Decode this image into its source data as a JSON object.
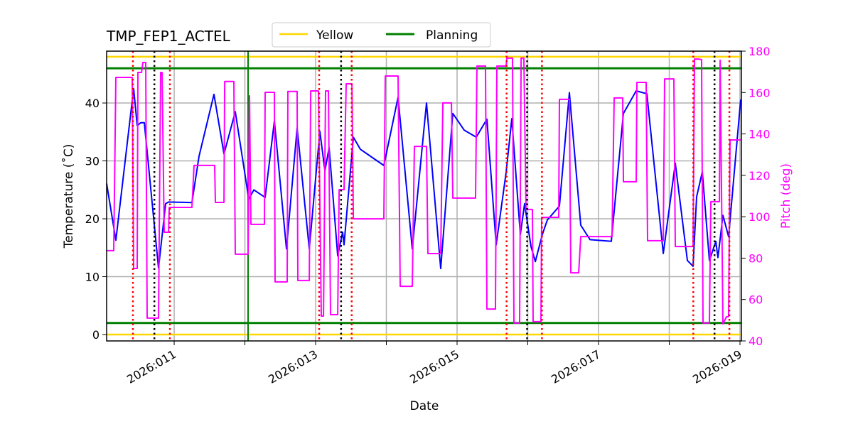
{
  "chart_data": {
    "type": "line",
    "title": "TMP_FEP1_ACTEL",
    "xlabel": "Date",
    "ylabel": "Temperature ($^\\circ$C)",
    "ylabel_display": "Temperature (˚C)",
    "y2label": "Pitch (deg)",
    "x_unit": "day of year 2026",
    "xlim": [
      10.045,
      19.02
    ],
    "ylim": [
      -1.1,
      48.96
    ],
    "y2lim": [
      40,
      180
    ],
    "x_ticks": [
      11,
      12,
      13,
      14,
      15,
      16,
      17,
      18,
      19
    ],
    "x_tick_labels": [
      {
        "x": 11,
        "label": "2026:011"
      },
      {
        "x": 13,
        "label": "2026:013"
      },
      {
        "x": 15,
        "label": "2026:015"
      },
      {
        "x": 17,
        "label": "2026:017"
      },
      {
        "x": 19,
        "label": "2026:019"
      }
    ],
    "y_ticks": [
      0,
      10,
      20,
      30,
      40
    ],
    "y_tick_labels": [
      "0",
      "10",
      "20",
      "30",
      "40"
    ],
    "y2_ticks": [
      40,
      60,
      80,
      100,
      120,
      140,
      160,
      180
    ],
    "y2_tick_labels": [
      "40",
      "60",
      "80",
      "100",
      "120",
      "140",
      "160",
      "180"
    ],
    "grid": true,
    "legend": {
      "placement": "top-center",
      "entries": [
        {
          "name": "Yellow",
          "color": "#ffd700"
        },
        {
          "name": "Planning",
          "color": "#008000"
        }
      ]
    },
    "hlines": [
      {
        "series": "Yellow",
        "y": 0,
        "color": "#ffd700"
      },
      {
        "series": "Yellow",
        "y": 48,
        "color": "#ffd700"
      },
      {
        "series": "Planning",
        "y": 2,
        "color": "#008000"
      },
      {
        "series": "Planning",
        "y": 46,
        "color": "#008000"
      }
    ],
    "vlines_red_dotted": [
      10.417,
      10.94,
      13.05,
      13.51,
      15.7,
      16.2,
      18.34,
      18.85
    ],
    "vlines_black_dotted": [
      10.72,
      13.36,
      15.99,
      18.64
    ],
    "vline_green": [
      12.045
    ],
    "colors": {
      "temperature": "#0000ff",
      "pitch": "#ff00ff",
      "red_lines": "#ff0000",
      "black_lines": "#000000"
    },
    "series": [
      {
        "axis": "left",
        "color": "#0000ff",
        "points": [
          [
            10.045,
            26.1
          ],
          [
            10.176,
            16.3
          ],
          [
            10.427,
            42.5
          ],
          [
            10.477,
            36.1
          ],
          [
            10.528,
            36.6
          ],
          [
            10.578,
            36.6
          ],
          [
            10.779,
            11.5
          ],
          [
            10.879,
            22.6
          ],
          [
            10.92,
            22.9
          ],
          [
            11.251,
            22.8
          ],
          [
            11.352,
            30.8
          ],
          [
            11.563,
            41.5
          ],
          [
            11.704,
            31.2
          ],
          [
            11.864,
            38.5
          ],
          [
            12.055,
            23.4
          ],
          [
            12.126,
            25.0
          ],
          [
            12.286,
            23.7
          ],
          [
            12.417,
            36.9
          ],
          [
            12.588,
            14.8
          ],
          [
            12.739,
            35.7
          ],
          [
            12.91,
            14.8
          ],
          [
            13.06,
            35.1
          ],
          [
            13.131,
            28.3
          ],
          [
            13.191,
            32.3
          ],
          [
            13.312,
            13.6
          ],
          [
            13.382,
            17.7
          ],
          [
            13.402,
            15.5
          ],
          [
            13.533,
            34.1
          ],
          [
            13.633,
            32.0
          ],
          [
            13.965,
            29.2
          ],
          [
            14.166,
            41.0
          ],
          [
            14.367,
            14.8
          ],
          [
            14.568,
            40.0
          ],
          [
            14.769,
            11.4
          ],
          [
            14.94,
            38.2
          ],
          [
            15.101,
            35.3
          ],
          [
            15.271,
            34.1
          ],
          [
            15.422,
            37.2
          ],
          [
            15.553,
            15.5
          ],
          [
            15.693,
            28.0
          ],
          [
            15.774,
            37.3
          ],
          [
            15.894,
            17.3
          ],
          [
            15.955,
            22.6
          ],
          [
            16.045,
            15.2
          ],
          [
            16.106,
            12.6
          ],
          [
            16.206,
            17.3
          ],
          [
            16.276,
            19.8
          ],
          [
            16.447,
            22.2
          ],
          [
            16.588,
            41.8
          ],
          [
            16.749,
            18.9
          ],
          [
            16.879,
            16.4
          ],
          [
            17.181,
            16.1
          ],
          [
            17.352,
            38.2
          ],
          [
            17.533,
            42.1
          ],
          [
            17.683,
            41.6
          ],
          [
            17.915,
            14.0
          ],
          [
            18.085,
            29.6
          ],
          [
            18.256,
            12.8
          ],
          [
            18.337,
            11.8
          ],
          [
            18.387,
            23.8
          ],
          [
            18.467,
            28.1
          ],
          [
            18.568,
            12.8
          ],
          [
            18.658,
            16.1
          ],
          [
            18.688,
            13.3
          ],
          [
            18.759,
            20.6
          ],
          [
            18.839,
            16.9
          ],
          [
            19.01,
            40.6
          ]
        ]
      },
      {
        "axis": "right",
        "color": "#ff00ff",
        "points": [
          [
            10.045,
            83.6
          ],
          [
            10.146,
            83.6
          ],
          [
            10.176,
            167.3
          ],
          [
            10.407,
            167.3
          ],
          [
            10.427,
            75.0
          ],
          [
            10.477,
            75.0
          ],
          [
            10.487,
            169.7
          ],
          [
            10.538,
            169.7
          ],
          [
            10.558,
            174.5
          ],
          [
            10.598,
            174.5
          ],
          [
            10.618,
            51.0
          ],
          [
            10.779,
            51.0
          ],
          [
            10.809,
            169.7
          ],
          [
            10.829,
            169.7
          ],
          [
            10.859,
            92.5
          ],
          [
            10.92,
            92.5
          ],
          [
            10.93,
            104.5
          ],
          [
            11.251,
            104.5
          ],
          [
            11.281,
            124.8
          ],
          [
            11.573,
            124.8
          ],
          [
            11.583,
            106.9
          ],
          [
            11.704,
            106.9
          ],
          [
            11.714,
            165.3
          ],
          [
            11.844,
            165.3
          ],
          [
            11.864,
            81.9
          ],
          [
            12.045,
            81.9
          ],
          [
            12.065,
            158.4
          ],
          [
            12.085,
            96.3
          ],
          [
            12.276,
            96.3
          ],
          [
            12.286,
            160.1
          ],
          [
            12.417,
            160.1
          ],
          [
            12.427,
            68.5
          ],
          [
            12.598,
            68.5
          ],
          [
            12.608,
            160.5
          ],
          [
            12.739,
            160.5
          ],
          [
            12.749,
            69.2
          ],
          [
            12.91,
            69.2
          ],
          [
            12.93,
            160.8
          ],
          [
            13.04,
            160.8
          ],
          [
            13.08,
            52.0
          ],
          [
            13.111,
            52.0
          ],
          [
            13.141,
            160.8
          ],
          [
            13.181,
            160.8
          ],
          [
            13.211,
            52.7
          ],
          [
            13.312,
            52.7
          ],
          [
            13.332,
            113.1
          ],
          [
            13.402,
            113.1
          ],
          [
            13.432,
            164.2
          ],
          [
            13.513,
            164.2
          ],
          [
            13.533,
            99.0
          ],
          [
            13.965,
            99.0
          ],
          [
            13.985,
            168.0
          ],
          [
            14.166,
            168.0
          ],
          [
            14.196,
            66.4
          ],
          [
            14.367,
            66.4
          ],
          [
            14.397,
            134.0
          ],
          [
            14.568,
            134.0
          ],
          [
            14.588,
            82.2
          ],
          [
            14.769,
            82.2
          ],
          [
            14.799,
            155.0
          ],
          [
            14.92,
            155.0
          ],
          [
            14.94,
            109.0
          ],
          [
            15.261,
            109.0
          ],
          [
            15.281,
            172.8
          ],
          [
            15.402,
            172.8
          ],
          [
            15.422,
            55.4
          ],
          [
            15.543,
            55.4
          ],
          [
            15.563,
            172.8
          ],
          [
            15.693,
            172.8
          ],
          [
            15.704,
            176.6
          ],
          [
            15.784,
            176.6
          ],
          [
            15.804,
            48.6
          ],
          [
            15.884,
            48.6
          ],
          [
            15.905,
            176.6
          ],
          [
            15.945,
            176.6
          ],
          [
            15.975,
            103.5
          ],
          [
            16.065,
            103.5
          ],
          [
            16.075,
            49.3
          ],
          [
            16.186,
            49.3
          ],
          [
            16.196,
            99.7
          ],
          [
            16.437,
            99.7
          ],
          [
            16.447,
            156.7
          ],
          [
            16.588,
            156.7
          ],
          [
            16.608,
            72.9
          ],
          [
            16.719,
            72.9
          ],
          [
            16.749,
            90.4
          ],
          [
            17.191,
            90.4
          ],
          [
            17.221,
            157.4
          ],
          [
            17.342,
            157.4
          ],
          [
            17.352,
            116.9
          ],
          [
            17.533,
            116.9
          ],
          [
            17.543,
            164.9
          ],
          [
            17.673,
            164.9
          ],
          [
            17.693,
            88.4
          ],
          [
            17.915,
            88.4
          ],
          [
            17.935,
            166.6
          ],
          [
            18.065,
            166.6
          ],
          [
            18.085,
            85.6
          ],
          [
            18.337,
            85.6
          ],
          [
            18.357,
            176.2
          ],
          [
            18.407,
            176.2
          ],
          [
            18.457,
            175.9
          ],
          [
            18.477,
            48.6
          ],
          [
            18.568,
            48.6
          ],
          [
            18.588,
            107.3
          ],
          [
            18.709,
            107.3
          ],
          [
            18.719,
            175.6
          ],
          [
            18.759,
            48.2
          ],
          [
            18.809,
            51.7
          ],
          [
            18.839,
            51.7
          ],
          [
            18.859,
            137.1
          ],
          [
            19.01,
            137.1
          ]
        ]
      }
    ]
  }
}
